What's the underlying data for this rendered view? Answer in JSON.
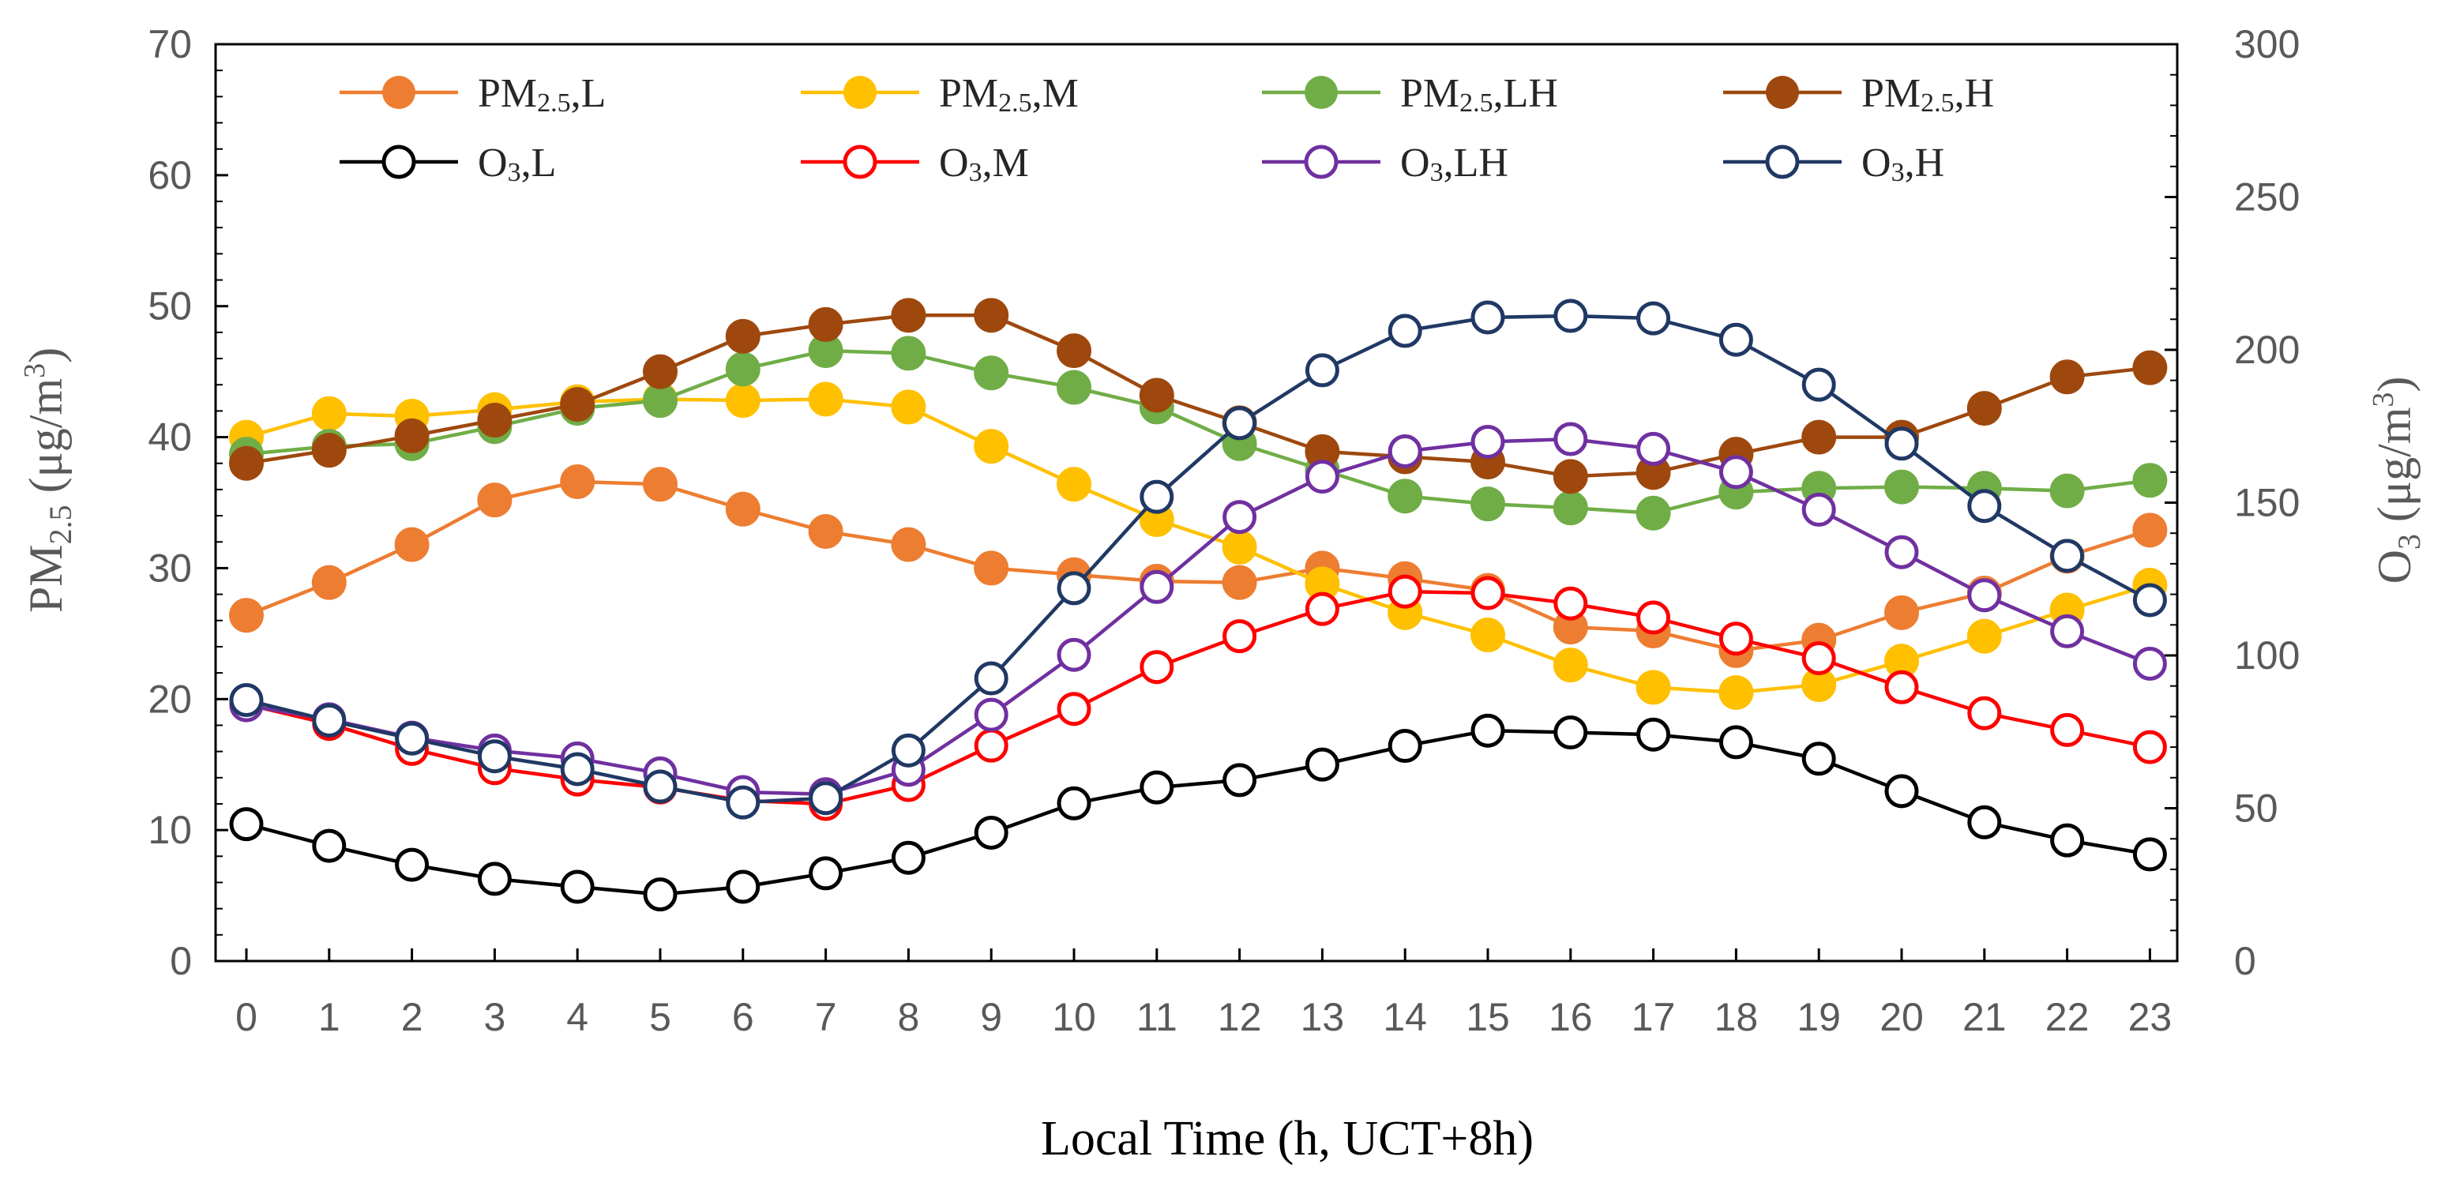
{
  "chart_data": {
    "type": "line",
    "title": "",
    "xlabel": "Local Time (h, UCT+8h)",
    "ylabel_left": {
      "main": "PM",
      "sub": "2.5",
      "rest": " (μg/m",
      "sup": "3",
      "close": ")"
    },
    "ylabel_right": {
      "main": "O",
      "sub": "3",
      "rest": " (μg/m",
      "sup": "3",
      "close": ")"
    },
    "x": [
      0,
      1,
      2,
      3,
      4,
      5,
      6,
      7,
      8,
      9,
      10,
      11,
      12,
      13,
      14,
      15,
      16,
      17,
      18,
      19,
      20,
      21,
      22,
      23
    ],
    "x_tick_labels": [
      "0",
      "1",
      "2",
      "3",
      "4",
      "5",
      "6",
      "7",
      "8",
      "9",
      "10",
      "11",
      "12",
      "13",
      "14",
      "15",
      "16",
      "17",
      "18",
      "19",
      "20",
      "21",
      "22",
      "23"
    ],
    "ylim_left": [
      0,
      70
    ],
    "yticks_left": [
      0,
      10,
      20,
      30,
      40,
      50,
      60,
      70
    ],
    "ylim_right": [
      0,
      300
    ],
    "yticks_right": [
      0,
      50,
      100,
      150,
      200,
      250,
      300
    ],
    "legend_location": "top",
    "series": [
      {
        "name": "PM2.5,L",
        "label_main": "PM",
        "label_sub": "2.5",
        "label_rest": ",L",
        "axis": "left",
        "color": "#ED7D31",
        "marker": "filled",
        "values": [
          26.4,
          28.9,
          31.8,
          35.2,
          36.6,
          36.4,
          34.5,
          32.8,
          31.8,
          30.0,
          29.5,
          29.0,
          28.9,
          30.0,
          29.2,
          28.3,
          25.5,
          25.2,
          23.7,
          24.5,
          26.6,
          28.1,
          30.9,
          32.9
        ]
      },
      {
        "name": "PM2.5,M",
        "label_main": "PM",
        "label_sub": "2.5",
        "label_rest": ",M",
        "axis": "left",
        "color": "#FFC000",
        "marker": "filled",
        "values": [
          40.0,
          41.8,
          41.6,
          42.1,
          42.7,
          42.9,
          42.8,
          42.9,
          42.3,
          39.3,
          36.4,
          33.7,
          31.6,
          28.8,
          26.6,
          24.9,
          22.6,
          20.9,
          20.5,
          21.1,
          22.9,
          24.8,
          26.8,
          28.7
        ]
      },
      {
        "name": "PM2.5,LH",
        "label_main": "PM",
        "label_sub": "2.5",
        "label_rest": ",LH",
        "axis": "left",
        "color": "#70AD47",
        "marker": "filled",
        "values": [
          38.7,
          39.3,
          39.5,
          40.8,
          42.2,
          42.8,
          45.2,
          46.6,
          46.4,
          44.9,
          43.8,
          42.3,
          39.5,
          37.5,
          35.5,
          34.9,
          34.6,
          34.2,
          35.8,
          36.1,
          36.2,
          36.1,
          35.9,
          36.7
        ]
      },
      {
        "name": "PM2.5,H",
        "label_main": "PM",
        "label_sub": "2.5",
        "label_rest": ",H",
        "axis": "left",
        "color": "#9E480E",
        "marker": "filled",
        "values": [
          38.0,
          39.0,
          40.1,
          41.3,
          42.5,
          45.0,
          47.7,
          48.6,
          49.3,
          49.3,
          46.6,
          43.2,
          41.1,
          38.9,
          38.5,
          38.1,
          37.0,
          37.3,
          38.7,
          40.0,
          40.0,
          42.2,
          44.6,
          45.3
        ]
      },
      {
        "name": "O3,L",
        "label_main": "O",
        "label_sub": "3",
        "label_rest": ",L",
        "axis": "right",
        "color": "#000000",
        "marker": "hollow",
        "values": [
          44.8,
          37.7,
          31.5,
          26.9,
          24.3,
          21.8,
          24.3,
          28.7,
          33.8,
          42.0,
          51.6,
          56.8,
          59.2,
          64.3,
          70.4,
          75.4,
          74.8,
          74.1,
          71.6,
          66.2,
          55.6,
          45.4,
          39.5,
          34.9
        ]
      },
      {
        "name": "O3,M",
        "label_main": "O",
        "label_sub": "3",
        "label_rest": ",M",
        "axis": "right",
        "color": "#FF0000",
        "marker": "hollow",
        "values": [
          84.0,
          77.6,
          69.4,
          63.1,
          59.4,
          56.8,
          52.5,
          51.4,
          57.6,
          70.5,
          82.5,
          96.2,
          106.3,
          115.2,
          120.9,
          120.4,
          117.0,
          112.4,
          105.5,
          99.1,
          89.6,
          81.1,
          75.6,
          70.0
        ]
      },
      {
        "name": "O3,LH",
        "label_main": "O",
        "label_sub": "3",
        "label_rest": ",LH",
        "axis": "right",
        "color": "#7030A0",
        "marker": "hollow",
        "values": [
          83.7,
          79.1,
          73.1,
          68.9,
          66.3,
          61.4,
          55.3,
          54.6,
          62.6,
          80.6,
          100.2,
          122.4,
          145.3,
          158.5,
          166.8,
          169.9,
          170.8,
          167.6,
          160.0,
          147.7,
          133.8,
          119.7,
          107.9,
          97.3
        ]
      },
      {
        "name": "O3,H",
        "label_main": "O",
        "label_sub": "3",
        "label_rest": ",H",
        "axis": "right",
        "color": "#203864",
        "marker": "hollow",
        "values": [
          85.4,
          78.7,
          72.8,
          67.0,
          62.8,
          57.1,
          51.9,
          53.3,
          68.9,
          92.5,
          122.0,
          151.9,
          176.0,
          193.3,
          206.2,
          210.6,
          211.1,
          210.3,
          203.3,
          188.6,
          169.3,
          148.9,
          132.6,
          118.1
        ]
      }
    ]
  }
}
